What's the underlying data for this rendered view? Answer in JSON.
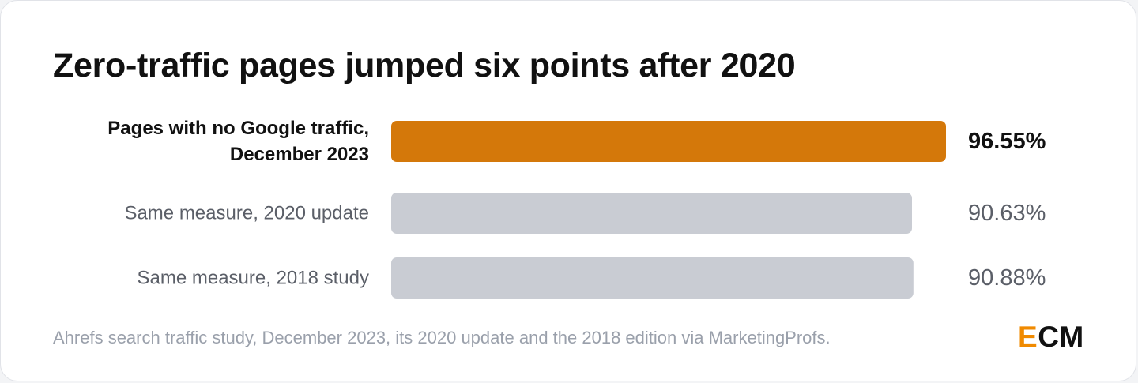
{
  "title": "Zero-traffic pages jumped six points after 2020",
  "source": "Ahrefs search traffic study, December 2023, its 2020 update and the 2018 edition via MarketingProfs.",
  "logo": {
    "accent": "E",
    "rest": "CM"
  },
  "colors": {
    "highlight_bar": "#d4780a",
    "muted_bar": "#c9ccd3",
    "highlight_text": "#111111",
    "muted_text": "#5b5f68"
  },
  "chart_data": {
    "type": "bar",
    "orientation": "horizontal",
    "categories": [
      [
        "Pages with no Google traffic,",
        "December 2023"
      ],
      [
        "Same measure, 2020 update"
      ],
      [
        "Same measure, 2018 study"
      ]
    ],
    "values": [
      96.55,
      90.63,
      90.88
    ],
    "value_labels": [
      "96.55%",
      "90.63%",
      "90.88%"
    ],
    "highlighted": [
      true,
      false,
      false
    ],
    "xlim": [
      0,
      96.55
    ],
    "grid": false,
    "legend": "none"
  }
}
